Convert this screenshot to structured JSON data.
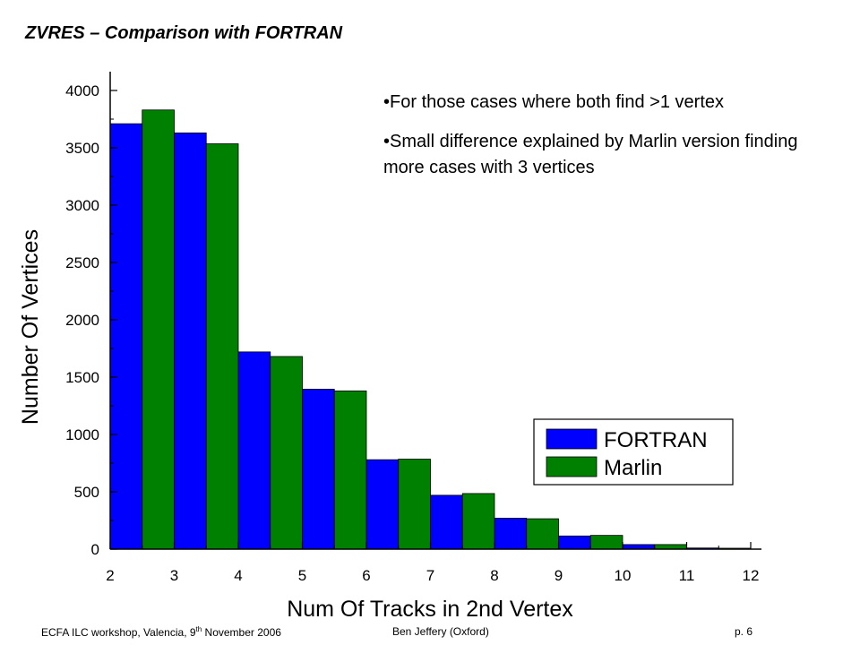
{
  "slide": {
    "title": "ZVRES – Comparison with FORTRAN",
    "bullets": [
      "For those cases where both find >1 vertex",
      "Small difference explained by Marlin version finding more cases with 3 vertices"
    ],
    "footer": {
      "left_prefix": "ECFA ILC workshop, Valencia, 9",
      "left_sup": "th",
      "left_suffix": " November  2006",
      "middle": "Ben Jeffery (Oxford)",
      "right": "p. 6"
    }
  },
  "chart_data": {
    "type": "bar",
    "categories": [
      "2",
      "3",
      "4",
      "5",
      "6",
      "7",
      "8",
      "9",
      "10",
      "11",
      "12"
    ],
    "xlabel": "Num Of Tracks in 2nd Vertex",
    "ylabel": "Number Of Vertices",
    "ylim": [
      0,
      4000
    ],
    "yticks": [
      "0",
      "500",
      "1000",
      "1500",
      "2000",
      "2500",
      "3000",
      "3500",
      "4000"
    ],
    "xlim": [
      2,
      12
    ],
    "grid": false,
    "legend_position": "right",
    "colors": {
      "FORTRAN": "#0000ff",
      "Marlin": "#008000"
    },
    "series": [
      {
        "name": "FORTRAN",
        "values": [
          3710,
          3630,
          1720,
          1395,
          780,
          470,
          270,
          115,
          40,
          10,
          0
        ]
      },
      {
        "name": "Marlin",
        "values": [
          3830,
          3535,
          1680,
          1380,
          785,
          485,
          265,
          120,
          40,
          8,
          0
        ]
      }
    ]
  }
}
